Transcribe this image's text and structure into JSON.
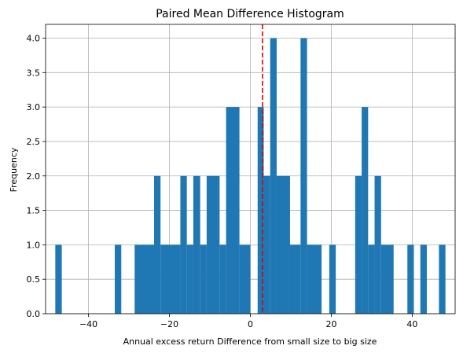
{
  "chart_data": {
    "type": "bar",
    "title": "Paired Mean Difference Histogram",
    "xlabel": "Annual excess return Difference from small size to big size",
    "ylabel": "Frequency",
    "xlim": [
      -50.6,
      50.6
    ],
    "ylim": [
      0,
      4.2
    ],
    "grid": true,
    "xticks": [
      -40,
      -20,
      0,
      20,
      40
    ],
    "xtick_labels": [
      "−40",
      "−20",
      "0",
      "20",
      "40"
    ],
    "yticks": [
      0,
      0.5,
      1,
      1.5,
      2,
      2.5,
      3,
      3.5,
      4
    ],
    "ytick_labels": [
      "0.0",
      "0.5",
      "1.0",
      "1.5",
      "2.0",
      "2.5",
      "3.0",
      "3.5",
      "4.0"
    ],
    "bin_width": 1.62,
    "bars": [
      {
        "x0": -48.2,
        "x1": -46.6,
        "count": 1
      },
      {
        "x0": -33.5,
        "x1": -31.9,
        "count": 1
      },
      {
        "x0": -28.6,
        "x1": -23.8,
        "count": 1
      },
      {
        "x0": -23.8,
        "x1": -22.2,
        "count": 2
      },
      {
        "x0": -22.2,
        "x1": -17.3,
        "count": 1
      },
      {
        "x0": -17.3,
        "x1": -15.7,
        "count": 2
      },
      {
        "x0": -15.7,
        "x1": -14.1,
        "count": 1
      },
      {
        "x0": -14.1,
        "x1": -12.4,
        "count": 2
      },
      {
        "x0": -12.4,
        "x1": -10.8,
        "count": 1
      },
      {
        "x0": -10.8,
        "x1": -7.6,
        "count": 2
      },
      {
        "x0": -7.6,
        "x1": -6.0,
        "count": 1
      },
      {
        "x0": -6.0,
        "x1": -2.7,
        "count": 3
      },
      {
        "x0": -2.7,
        "x1": 0.0,
        "count": 1
      },
      {
        "x0": 1.8,
        "x1": 3.3,
        "count": 3
      },
      {
        "x0": 3.3,
        "x1": 4.9,
        "count": 2
      },
      {
        "x0": 4.9,
        "x1": 6.5,
        "count": 4
      },
      {
        "x0": 6.5,
        "x1": 9.8,
        "count": 2
      },
      {
        "x0": 9.8,
        "x1": 12.4,
        "count": 1
      },
      {
        "x0": 12.4,
        "x1": 14.0,
        "count": 4
      },
      {
        "x0": 14.0,
        "x1": 17.6,
        "count": 1
      },
      {
        "x0": 19.5,
        "x1": 21.1,
        "count": 1
      },
      {
        "x0": 25.9,
        "x1": 27.5,
        "count": 2
      },
      {
        "x0": 27.5,
        "x1": 29.1,
        "count": 3
      },
      {
        "x0": 29.1,
        "x1": 30.7,
        "count": 1
      },
      {
        "x0": 30.7,
        "x1": 32.3,
        "count": 2
      },
      {
        "x0": 32.3,
        "x1": 35.4,
        "count": 1
      },
      {
        "x0": 38.8,
        "x1": 40.4,
        "count": 1
      },
      {
        "x0": 42.0,
        "x1": 43.6,
        "count": 1
      },
      {
        "x0": 46.6,
        "x1": 48.2,
        "count": 1
      }
    ],
    "mean_difference": 3.0
  },
  "colors": {
    "bar": "#1f77b4",
    "mean_line": "#e00000",
    "grid": "#b0b0b0"
  }
}
